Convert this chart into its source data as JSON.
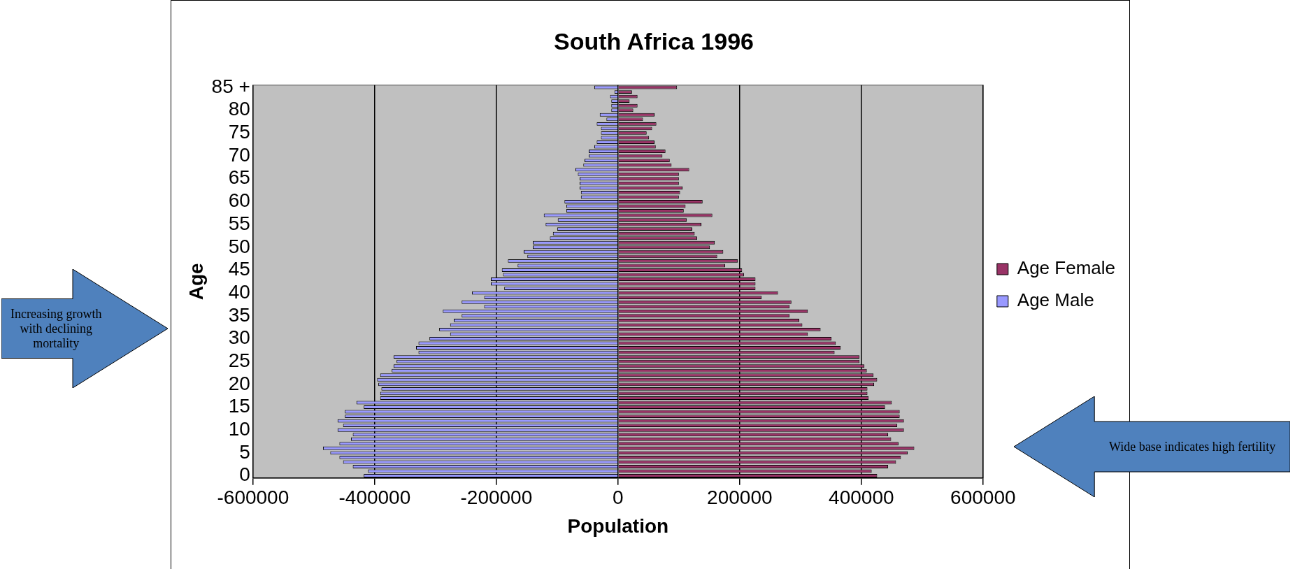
{
  "chart_data": {
    "type": "bar",
    "orientation": "horizontal",
    "stacked": true,
    "title": "South Africa 1996",
    "xlabel": "Population",
    "ylabel": "Age",
    "categories": [
      "85 +",
      null,
      null,
      null,
      null,
      "80",
      null,
      null,
      null,
      null,
      "75",
      null,
      null,
      null,
      null,
      "70",
      null,
      null,
      null,
      null,
      "65",
      null,
      null,
      null,
      null,
      "60",
      null,
      null,
      null,
      null,
      "55",
      null,
      null,
      null,
      null,
      "50",
      null,
      null,
      null,
      null,
      "45",
      null,
      null,
      null,
      null,
      "40",
      null,
      null,
      null,
      null,
      "35",
      null,
      null,
      null,
      null,
      "30",
      null,
      null,
      null,
      null,
      "25",
      null,
      null,
      null,
      null,
      "20",
      null,
      null,
      null,
      null,
      "15",
      null,
      null,
      null,
      null,
      "10",
      null,
      null,
      null,
      null,
      "5",
      null,
      null,
      null,
      null,
      "0"
    ],
    "series": [
      {
        "name": "Age Female",
        "color": "#993366",
        "values": [
          97000,
          23000,
          32000,
          19000,
          32000,
          25000,
          60000,
          41000,
          63000,
          56000,
          47000,
          51000,
          60000,
          62000,
          78000,
          73000,
          85000,
          88000,
          117000,
          100000,
          100000,
          100000,
          106000,
          102000,
          100000,
          139000,
          111000,
          108000,
          155000,
          113000,
          137000,
          122000,
          126000,
          130000,
          159000,
          151000,
          173000,
          163000,
          197000,
          176000,
          204000,
          207000,
          226000,
          226000,
          226000,
          263000,
          236000,
          285000,
          282000,
          312000,
          282000,
          298000,
          303000,
          333000,
          312000,
          351000,
          358000,
          366000,
          356000,
          397000,
          397000,
          405000,
          409000,
          420000,
          426000,
          421000,
          410000,
          410000,
          412000,
          450000,
          439000,
          463000,
          463000,
          470000,
          459000,
          470000,
          444000,
          449000,
          461000,
          487000,
          476000,
          465000,
          457000,
          444000,
          417000,
          426000
        ]
      },
      {
        "name": "Age Male",
        "color": "#9999ff",
        "values": [
          -39000,
          -6000,
          -13000,
          -11000,
          -11000,
          -11000,
          -30000,
          -19000,
          -35000,
          -28000,
          -28000,
          -28000,
          -35000,
          -39000,
          -48000,
          -48000,
          -55000,
          -57000,
          -70000,
          -66000,
          -63000,
          -63000,
          -63000,
          -61000,
          -61000,
          -88000,
          -85000,
          -85000,
          -122000,
          -99000,
          -119000,
          -100000,
          -107000,
          -112000,
          -140000,
          -140000,
          -155000,
          -149000,
          -181000,
          -165000,
          -191000,
          -189000,
          -209000,
          -209000,
          -187000,
          -240000,
          -220000,
          -257000,
          -220000,
          -288000,
          -257000,
          -270000,
          -276000,
          -294000,
          -276000,
          -310000,
          -328000,
          -332000,
          -328000,
          -369000,
          -364000,
          -369000,
          -372000,
          -391000,
          -396000,
          -394000,
          -389000,
          -391000,
          -391000,
          -430000,
          -418000,
          -449000,
          -449000,
          -461000,
          -452000,
          -461000,
          -436000,
          -439000,
          -458000,
          -485000,
          -473000,
          -458000,
          -452000,
          -436000,
          -411000,
          -418000
        ]
      }
    ],
    "xlim": [
      -600000,
      600000
    ],
    "xticks": [
      -600000,
      -400000,
      -200000,
      0,
      200000,
      400000,
      600000
    ],
    "grid": "x",
    "legend": "right",
    "annotations": [
      "Increasing growth with declining mortality",
      "Wide base indicates high fertility"
    ]
  }
}
